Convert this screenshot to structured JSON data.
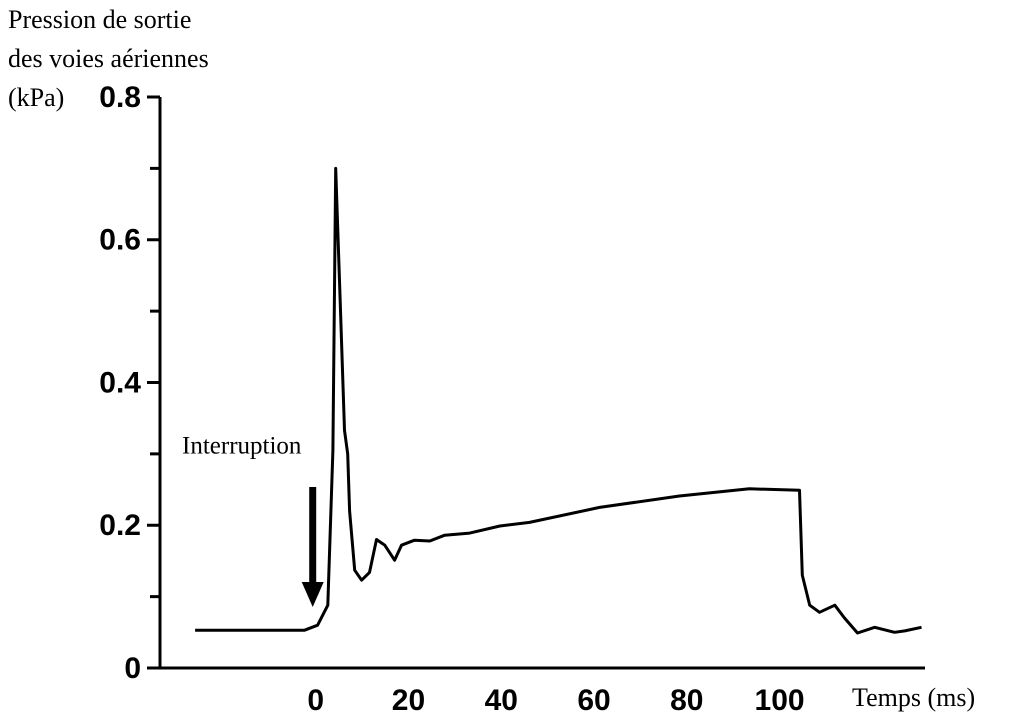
{
  "chart_data": {
    "type": "line",
    "y_label": [
      "Pression de sortie",
      "des voies aériennes",
      "(kPa)"
    ],
    "x_label": "Temps (ms)",
    "annotation": {
      "text": "Interruption",
      "x": 0
    },
    "color": "#000000",
    "x": [
      -26,
      -2.4,
      0.4,
      2.6,
      3.7,
      4.3,
      5.2,
      6.2,
      6.9,
      7.3,
      8.4,
      9.9,
      11.6,
      13.1,
      14.9,
      17.0,
      18.5,
      21.3,
      24.6,
      27.8,
      33.2,
      39.7,
      46.1,
      61.2,
      78.4,
      93.5,
      104.3,
      104.9,
      106.5,
      108.6,
      111.9,
      114.0,
      116.8,
      120.5,
      124.8,
      127.0,
      130.6
    ],
    "values": [
      0.053,
      0.053,
      0.06,
      0.088,
      0.305,
      0.7,
      0.53,
      0.333,
      0.3,
      0.22,
      0.137,
      0.123,
      0.134,
      0.18,
      0.172,
      0.151,
      0.172,
      0.179,
      0.178,
      0.186,
      0.189,
      0.199,
      0.204,
      0.225,
      0.241,
      0.251,
      0.249,
      0.13,
      0.088,
      0.078,
      0.088,
      0.07,
      0.049,
      0.057,
      0.05,
      0.052,
      0.057
    ],
    "xlim": [
      -34,
      132
    ],
    "ylim": [
      0,
      0.8
    ],
    "xticks": [
      0,
      20,
      40,
      60,
      80,
      100
    ],
    "yticks": [
      0,
      0.2,
      0.4,
      0.6,
      0.8
    ]
  }
}
